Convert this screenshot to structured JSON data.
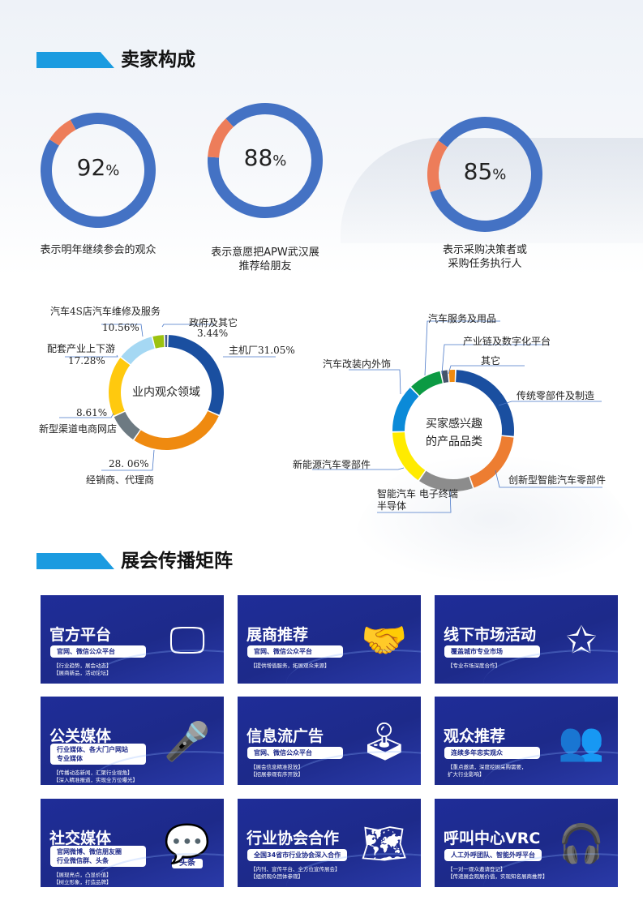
{
  "section1": {
    "title": "卖家构成"
  },
  "rings": [
    {
      "value": 92,
      "unit": "%",
      "caption": [
        "表示明年继续参会的观众"
      ]
    },
    {
      "value": 88,
      "unit": "%",
      "caption": [
        "表示意愿把APW武汉展",
        "推荐给朋友"
      ]
    },
    {
      "value": 85,
      "unit": "%",
      "caption": [
        "表示采购决策者或",
        "采购任务执行人"
      ]
    }
  ],
  "colors": {
    "ring_main": "#4472c4",
    "ring_rest": "#ed7d5a",
    "card_bg": "#1f2d98",
    "accent": "#1b9be0"
  },
  "chart_data": [
    {
      "type": "pie",
      "donut": true,
      "center_label": "业内观众领域",
      "categories": [
        "主机厂",
        "经销商、代理商",
        "新型渠道电商网店",
        "配套产业上下游",
        "汽车4S店汽车维修及服务",
        "政府及其它",
        ""
      ],
      "values": [
        31.05,
        28.06,
        8.61,
        17.28,
        10.56,
        3.44,
        1.0
      ],
      "labels": [
        "主机厂31.05%",
        "28. 06%",
        "8.61%",
        "17.28%",
        "10.56%",
        "3.44%"
      ],
      "colors": [
        "#1a4fa0",
        "#ef8a10",
        "#6d7a82",
        "#ffc90e",
        "#a5d8f3",
        "#9cc20f",
        "#4a5f8c"
      ]
    },
    {
      "type": "pie",
      "donut": true,
      "center_label": [
        "买家感兴趣",
        "的产品品类"
      ],
      "categories": [
        "传统零部件及制造",
        "创新型智能汽车零部件",
        "智能汽车 电子终端 半导体",
        "新能源汽车零部件",
        "汽车改装内外饰",
        "汽车服务及用品",
        "产业链及数字化平台",
        "其它"
      ],
      "values": [
        26,
        18,
        15,
        15,
        13,
        9,
        2,
        2
      ],
      "colors": [
        "#1a4fa0",
        "#ed7d31",
        "#8c8c8c",
        "#ffeb00",
        "#0b8ad8",
        "#0c9a43",
        "#44546a",
        "#ef8a10"
      ]
    }
  ],
  "section2": {
    "title": "展会传播矩阵"
  },
  "cards": [
    {
      "title": "官方平台",
      "pill": [
        "官网、微信公众平台"
      ],
      "notes": [
        "【行业趋势，展会动态】",
        "【展商新品，活动论坛】"
      ],
      "icon": "monitor-icon"
    },
    {
      "title": "展商推荐",
      "pill": [
        "官网、微信公众平台"
      ],
      "notes": [
        "【提供增值服务，拓展观众来源】"
      ],
      "icon": "handshake-icon"
    },
    {
      "title": "线下市场活动",
      "pill": [
        "覆盖城市专业市场"
      ],
      "notes": [
        "【专业市场深度合作】"
      ],
      "icon": "audience-stars-icon"
    },
    {
      "title": "公关媒体",
      "pill": [
        "行业媒体、各大门户网站",
        "专业媒体"
      ],
      "notes": [
        "【传播动态新闻，汇聚行业视角】",
        "【深入精准报道，实现全方位曝光】"
      ],
      "icon": "microphone-icon"
    },
    {
      "title": "信息流广告",
      "pill": [
        "官网、微信公众平台"
      ],
      "notes": [
        "【展会信息精准投放】",
        "【招展参观有序开放】"
      ],
      "icon": "joystick-icon"
    },
    {
      "title": "观众推荐",
      "pill": [
        "连续多年忠实观众"
      ],
      "notes": [
        "【重点邀请，深度挖掘采购需要，",
        "扩大行业影响】"
      ],
      "icon": "users-icon"
    },
    {
      "title": "社交媒体",
      "pill": [
        "官网微博、微信朋友圈",
        "行业微信群、头条"
      ],
      "notes": [
        "【展现亮点，凸显价值】",
        "【树立形象，打造品牌】"
      ],
      "icon": "wechat-weibo-toutiao-icon",
      "icon_text": "头条"
    },
    {
      "title": "行业协会合作",
      "pill": [
        "全国34省市行业协会深入合作"
      ],
      "notes": [
        "【内刊、宣传平台、全方位宣传展会】",
        "【组织观众团体参观】"
      ],
      "icon": "china-map-icon"
    },
    {
      "title": "呼叫中心VRC",
      "pill": [
        "人工外呼团队、智能外呼平台"
      ],
      "notes": [
        "【一对一观众邀请登记】",
        "【传递展会观展价值，实现知名展商推荐】"
      ],
      "icon": "headset-agent-icon"
    }
  ]
}
